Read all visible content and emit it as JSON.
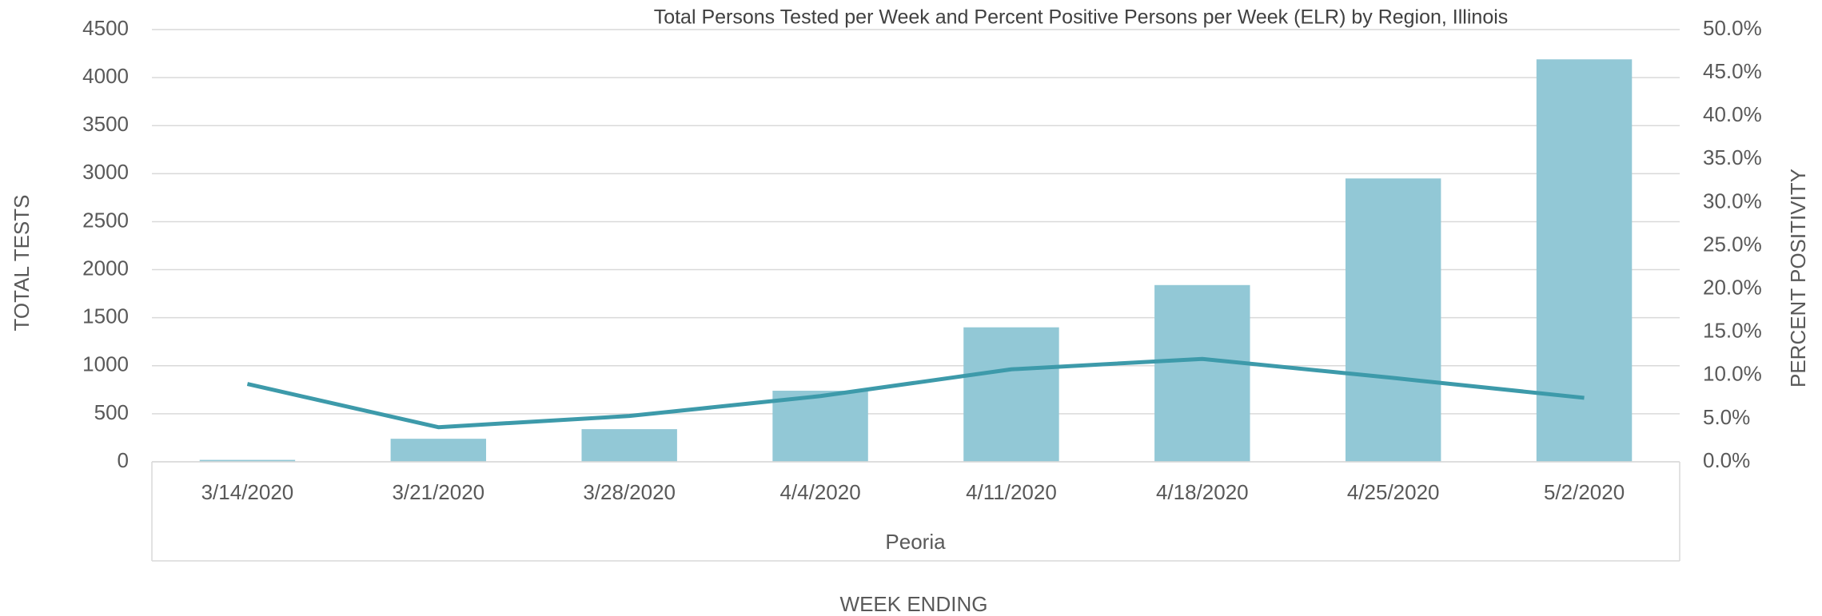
{
  "chart_data": {
    "type": "bar",
    "title": "Total Persons Tested per Week and Percent Positive Persons per Week (ELR) by Region, Illinois",
    "ylabel": "TOTAL TESTS",
    "y2label": "PERCENT POSITIVITY",
    "xlabel": "WEEK ENDING",
    "group_label": "Peoria",
    "categories": [
      "3/14/2020",
      "3/21/2020",
      "3/28/2020",
      "4/4/2020",
      "4/11/2020",
      "4/18/2020",
      "4/25/2020",
      "5/2/2020"
    ],
    "series": [
      {
        "type": "bar",
        "color": "#92c8d6",
        "values": [
          20,
          240,
          340,
          740,
          1400,
          1840,
          2950,
          4190
        ]
      },
      {
        "type": "line",
        "axis": "y2",
        "color": "#3d9aaa",
        "values": [
          9.0,
          4.0,
          5.3,
          7.6,
          10.7,
          11.9,
          9.7,
          7.4
        ]
      }
    ],
    "ylim": [
      0,
      4500
    ],
    "yticks": [
      0,
      500,
      1000,
      1500,
      2000,
      2500,
      3000,
      3500,
      4000,
      4500
    ],
    "y2lim": [
      0,
      50
    ],
    "y2ticks": [
      {
        "value": 0,
        "label": "0.0%"
      },
      {
        "value": 5,
        "label": "5.0%"
      },
      {
        "value": 10,
        "label": "10.0%"
      },
      {
        "value": 15,
        "label": "15.0%"
      },
      {
        "value": 20,
        "label": "20.0%"
      },
      {
        "value": 25,
        "label": "25.0%"
      },
      {
        "value": 30,
        "label": "30.0%"
      },
      {
        "value": 35,
        "label": "35.0%"
      },
      {
        "value": 40,
        "label": "40.0%"
      },
      {
        "value": 45,
        "label": "45.0%"
      },
      {
        "value": 50,
        "label": "50.0%"
      }
    ],
    "grid": true
  }
}
